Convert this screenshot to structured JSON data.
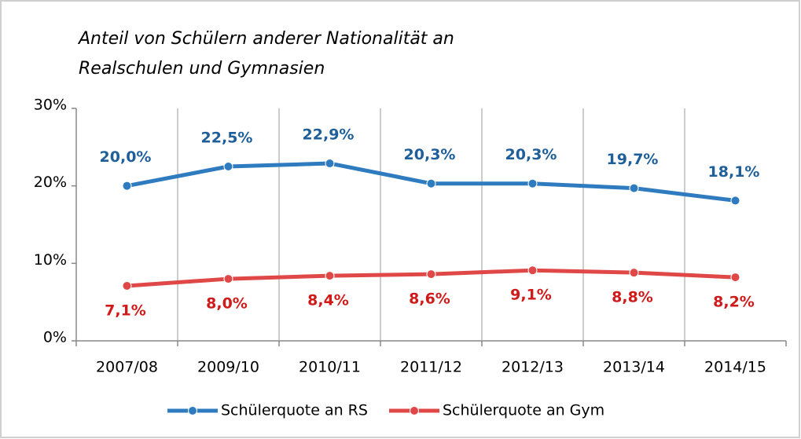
{
  "chart_data": {
    "type": "line",
    "title": [
      "Anteil von Schülern anderer Nationalität an",
      "Realschulen und Gymnasien"
    ],
    "categories": [
      "2007/08",
      "2009/10",
      "2010/11",
      "2011/12",
      "2012/13",
      "2013/14",
      "2014/15"
    ],
    "series": [
      {
        "name": "Schülerquote an RS",
        "color": "#2e7bbf",
        "label_color": "#1f5f99",
        "values": [
          20.0,
          22.5,
          22.9,
          20.3,
          20.3,
          19.7,
          18.1
        ],
        "value_labels": [
          "20,0%",
          "22,5%",
          "22,9%",
          "20,3%",
          "20,3%",
          "19,7%",
          "18,1%"
        ]
      },
      {
        "name": "Schülerquote an Gym",
        "color": "#e04848",
        "label_color": "#d01a1a",
        "values": [
          7.1,
          8.0,
          8.4,
          8.6,
          9.1,
          8.8,
          8.2
        ],
        "value_labels": [
          "7,1%",
          "8,0%",
          "8,4%",
          "8,6%",
          "9,1%",
          "8,8%",
          "8,2%"
        ]
      }
    ],
    "ylim": [
      0,
      30
    ],
    "yticks": [
      {
        "value": 0,
        "label": "0%"
      },
      {
        "value": 10,
        "label": "10%"
      },
      {
        "value": 20,
        "label": "20%"
      },
      {
        "value": 30,
        "label": "30%"
      }
    ],
    "grid": true,
    "legend": "bottom"
  }
}
